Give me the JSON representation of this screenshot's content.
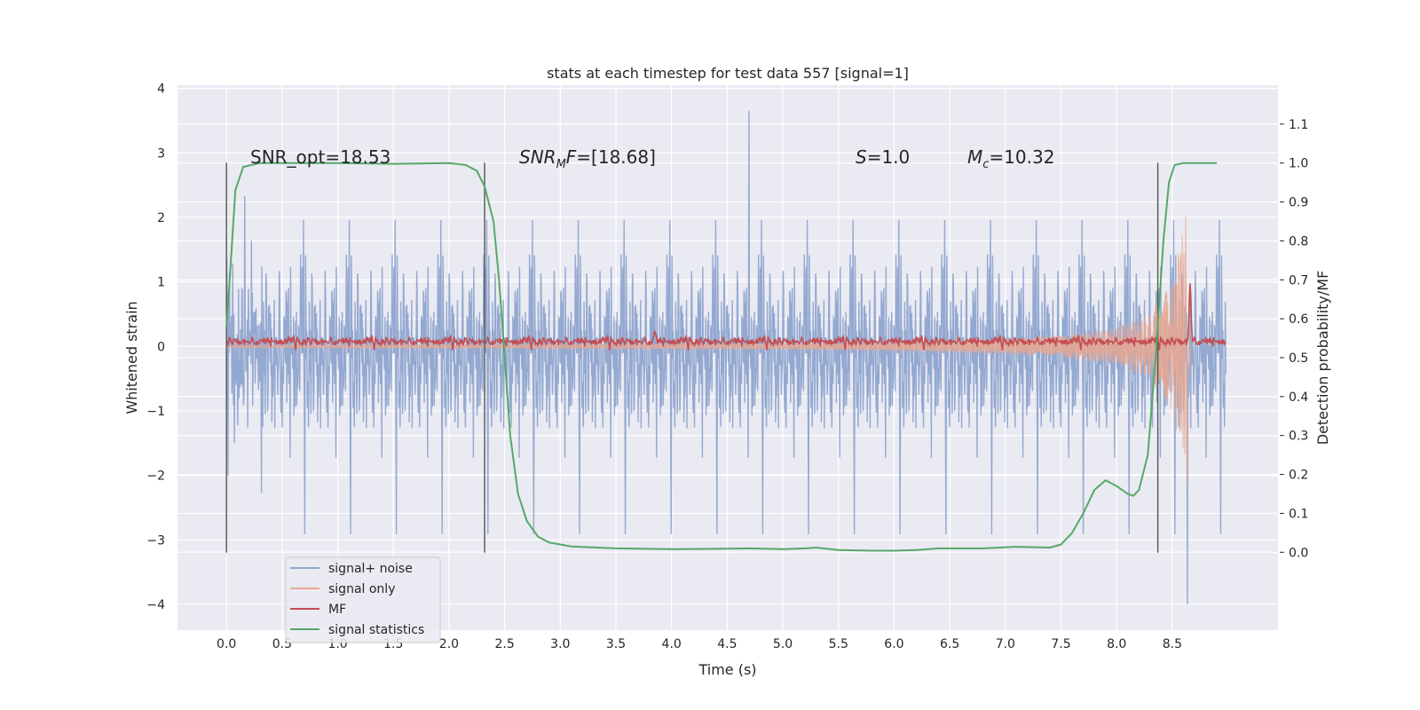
{
  "chart_data": {
    "type": "line",
    "title": "stats at each timestep for test data 557 [signal=1]",
    "xlabel": "Time (s)",
    "ylabel": "Whitened strain",
    "y2label": "Detection probability/MF",
    "xlim": [
      -0.44,
      9.45
    ],
    "ylim": [
      -4.4,
      4.05
    ],
    "y2lim": [
      -0.2,
      1.2
    ],
    "xticks": [
      "0.0",
      "0.5",
      "1.0",
      "1.5",
      "2.0",
      "2.5",
      "3.0",
      "3.5",
      "4.0",
      "4.5",
      "5.0",
      "5.5",
      "6.0",
      "6.5",
      "7.0",
      "7.5",
      "8.0",
      "8.5"
    ],
    "yticks": [
      "4",
      "3",
      "2",
      "1",
      "0",
      "−1",
      "−2",
      "−3",
      "−4"
    ],
    "y2ticks": [
      "0.0",
      "0.1",
      "0.2",
      "0.3",
      "0.4",
      "0.5",
      "0.6",
      "0.7",
      "0.8",
      "0.9",
      "1.0",
      "1.1"
    ],
    "grid": true,
    "legend_position": "lower-left",
    "annotations": {
      "snr_opt": "SNR_opt=18.53",
      "snr_mf_main": "SNR",
      "snr_mf_sub": "M",
      "snr_mf_tail": "F",
      "snr_mf_value": "=[18.68]",
      "s_main": "S",
      "s_value": "=1.0",
      "mc_main": "M",
      "mc_sub": "c",
      "mc_value": "=10.32"
    },
    "vlines_x": [
      0.0,
      2.32,
      8.37
    ],
    "vlines_yrange": [
      -3.2,
      2.85
    ],
    "series": [
      {
        "name": "signal+ noise",
        "color": "#8fa5cf",
        "kind": "noise",
        "x_range": [
          0.0,
          8.98
        ],
        "amplitude_1sigma": 0.75,
        "peak_max": 3.65,
        "peak_min": -4.0
      },
      {
        "name": "signal only",
        "color": "#e8a790",
        "kind": "chirp",
        "x_range": [
          0.0,
          8.66
        ],
        "envelope": [
          [
            0.0,
            0.02
          ],
          [
            5.0,
            0.05
          ],
          [
            6.0,
            0.07
          ],
          [
            7.0,
            0.12
          ],
          [
            7.5,
            0.17
          ],
          [
            8.0,
            0.28
          ],
          [
            8.3,
            0.5
          ],
          [
            8.5,
            1.0
          ],
          [
            8.6,
            1.8
          ],
          [
            8.65,
            2.3
          ],
          [
            8.66,
            0.0
          ]
        ]
      },
      {
        "name": "MF",
        "color": "#c44e52",
        "kind": "mf",
        "x_range": [
          0.0,
          8.98
        ],
        "baseline": 0.08,
        "noise": 0.035,
        "peaks": [
          [
            3.85,
            0.25
          ],
          [
            8.66,
            0.98
          ]
        ]
      },
      {
        "name": "signal statistics",
        "color": "#55a868",
        "kind": "curve",
        "axis": "right",
        "points": [
          [
            0.0,
            0.58
          ],
          [
            0.04,
            0.75
          ],
          [
            0.08,
            0.93
          ],
          [
            0.15,
            0.99
          ],
          [
            0.3,
            1.0
          ],
          [
            1.0,
            1.0
          ],
          [
            1.5,
            0.998
          ],
          [
            2.0,
            1.0
          ],
          [
            2.15,
            0.995
          ],
          [
            2.25,
            0.98
          ],
          [
            2.32,
            0.94
          ],
          [
            2.4,
            0.85
          ],
          [
            2.45,
            0.7
          ],
          [
            2.5,
            0.5
          ],
          [
            2.55,
            0.3
          ],
          [
            2.62,
            0.15
          ],
          [
            2.7,
            0.08
          ],
          [
            2.8,
            0.04
          ],
          [
            2.9,
            0.025
          ],
          [
            3.1,
            0.015
          ],
          [
            3.5,
            0.01
          ],
          [
            4.0,
            0.008
          ],
          [
            4.5,
            0.009
          ],
          [
            4.7,
            0.01
          ],
          [
            5.0,
            0.008
          ],
          [
            5.2,
            0.01
          ],
          [
            5.3,
            0.012
          ],
          [
            5.5,
            0.006
          ],
          [
            5.8,
            0.004
          ],
          [
            6.0,
            0.004
          ],
          [
            6.2,
            0.006
          ],
          [
            6.4,
            0.01
          ],
          [
            6.8,
            0.01
          ],
          [
            7.1,
            0.014
          ],
          [
            7.4,
            0.012
          ],
          [
            7.5,
            0.02
          ],
          [
            7.6,
            0.05
          ],
          [
            7.7,
            0.1
          ],
          [
            7.8,
            0.16
          ],
          [
            7.9,
            0.185
          ],
          [
            8.0,
            0.17
          ],
          [
            8.1,
            0.15
          ],
          [
            8.15,
            0.145
          ],
          [
            8.2,
            0.16
          ],
          [
            8.28,
            0.25
          ],
          [
            8.35,
            0.5
          ],
          [
            8.42,
            0.8
          ],
          [
            8.47,
            0.95
          ],
          [
            8.52,
            0.995
          ],
          [
            8.6,
            1.0
          ],
          [
            8.7,
            1.0
          ],
          [
            8.9,
            1.0
          ]
        ]
      }
    ]
  }
}
